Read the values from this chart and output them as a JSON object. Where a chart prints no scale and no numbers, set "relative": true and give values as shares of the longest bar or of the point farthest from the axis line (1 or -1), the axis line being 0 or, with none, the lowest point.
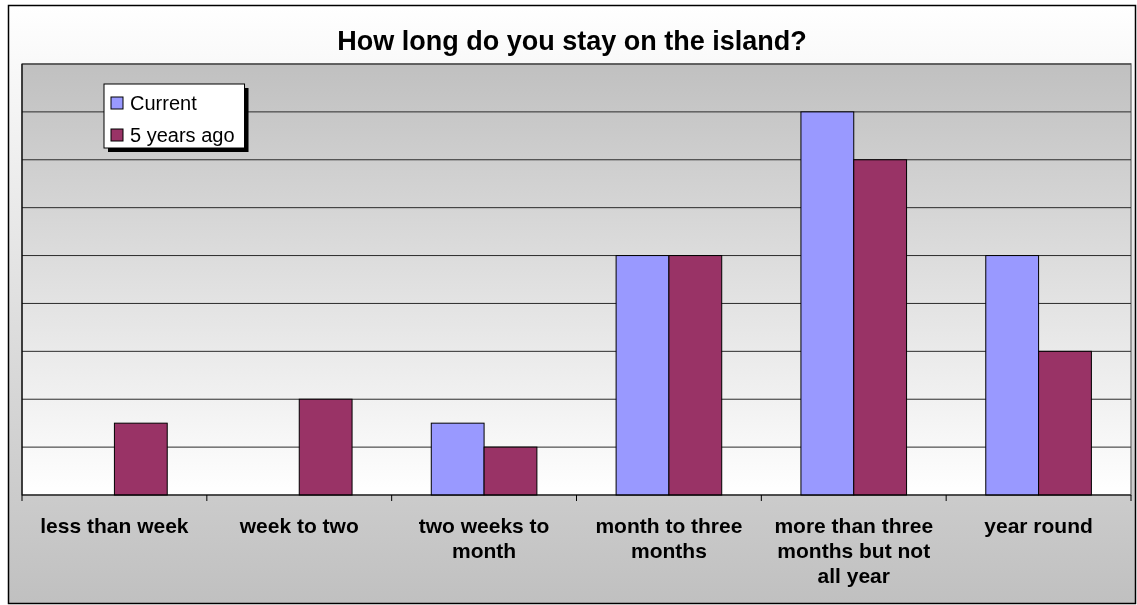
{
  "chart_data": {
    "type": "bar",
    "title": "How long do you stay on the island?",
    "categories": [
      "less than week",
      "week to two",
      "two weeks to month",
      "month to three months",
      "more than three months but not all year",
      "year round"
    ],
    "series": [
      {
        "name": "Current",
        "color": "#9999ff",
        "values": [
          0,
          0,
          0.1875,
          0.625,
          1,
          0.625
        ]
      },
      {
        "name": "5 years ago",
        "color": "#993366",
        "values": [
          0.1875,
          0.25,
          0.125,
          0.625,
          0.875,
          0.375
        ]
      }
    ],
    "relative": true,
    "grid": true,
    "legend": "top left"
  }
}
